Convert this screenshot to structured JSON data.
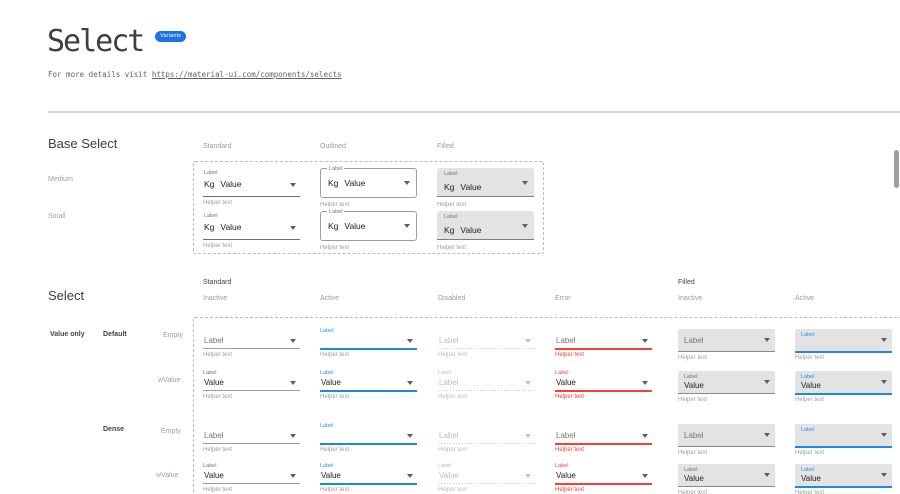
{
  "page": {
    "title": "Select",
    "badge": "Variants",
    "subtitle_prefix": "For more details visit ",
    "subtitle_link": "https://material-ui.com/components/selects"
  },
  "colors": {
    "accent_blue": "#2196f3",
    "active_underline": "#1e88e5",
    "error_red": "#f44336",
    "filled_background": "#e3e3e3",
    "dashed_border": "#b4badf",
    "badge_blue": "#1a73e8",
    "text_primary": "#212121",
    "text_secondary": "#757575",
    "text_hint": "#9e9e9e",
    "disabled_gray": "#bdbdbd"
  },
  "base_select": {
    "title": "Base Select",
    "columns": [
      "Standard",
      "Outlined",
      "Filled"
    ],
    "rows": [
      "Medium",
      "Small"
    ],
    "cells": [
      {
        "variant": "standard",
        "label": "Label",
        "adornment": "Kg",
        "value": "Value",
        "helper": "Helper text"
      },
      {
        "variant": "outlined",
        "label": "Label",
        "adornment": "Kg",
        "value": "Value",
        "helper": "Helper text"
      },
      {
        "variant": "filled",
        "label": "Label",
        "adornment": "Kg",
        "value": "Value",
        "helper": "Helper text"
      },
      {
        "variant": "standard",
        "label": "Label",
        "adornment": "Kg",
        "value": "Value",
        "helper": "Helper text"
      },
      {
        "variant": "outlined",
        "label": "Label",
        "adornment": "Kg",
        "value": "Value",
        "helper": "Helper text"
      },
      {
        "variant": "filled",
        "label": "Label",
        "adornment": "Kg",
        "value": "Value",
        "helper": "Helper text"
      }
    ]
  },
  "select_section": {
    "title": "Select",
    "group_standard": "Standard",
    "group_filled": "Filled",
    "columns": [
      "Inactive",
      "Active",
      "Disabled",
      "Error",
      "Inactive",
      "Active"
    ],
    "row_group_1": "Value only",
    "row_group_2": "Default",
    "row_group_3": "Dense",
    "row_labels": [
      "Empty",
      "wValue",
      "Empty",
      "wValue"
    ],
    "cells": [
      {
        "kind": "standard",
        "state": "inactive",
        "label": null,
        "value": "Label",
        "helper": "Helper text"
      },
      {
        "kind": "standard",
        "state": "active",
        "label": "Label",
        "value": "",
        "helper": "Helper text"
      },
      {
        "kind": "standard",
        "state": "disabled",
        "label": null,
        "value": "Label",
        "helper": "Helper text"
      },
      {
        "kind": "standard",
        "state": "error",
        "label": null,
        "value": "Label",
        "helper": "Helper text"
      },
      {
        "kind": "filled",
        "state": "inactive",
        "label": null,
        "value": "Label",
        "helper": "Helper text"
      },
      {
        "kind": "filled",
        "state": "active",
        "label": "Label",
        "value": "",
        "helper": "Helper text"
      },
      {
        "kind": "standard",
        "state": "inactive",
        "label": "Label",
        "value": "Value",
        "helper": "Helper text"
      },
      {
        "kind": "standard",
        "state": "active",
        "label": "Label",
        "value": "Value",
        "helper": "Helper text"
      },
      {
        "kind": "standard",
        "state": "disabled",
        "label": "Label",
        "value": "Label",
        "helper": "Helper text"
      },
      {
        "kind": "standard",
        "state": "error",
        "label": "Label",
        "value": "Value",
        "helper": "Helper text"
      },
      {
        "kind": "filled",
        "state": "inactive",
        "label": "Label",
        "value": "Value",
        "helper": "Helper text"
      },
      {
        "kind": "filled",
        "state": "active",
        "label": "Label",
        "value": "Value",
        "helper": "Helper text"
      },
      {
        "kind": "standard",
        "state": "inactive",
        "label": null,
        "value": "Label",
        "helper": "Helper text"
      },
      {
        "kind": "standard",
        "state": "active",
        "label": "Label",
        "value": "",
        "helper": "Helper text"
      },
      {
        "kind": "standard",
        "state": "disabled",
        "label": null,
        "value": "Label",
        "helper": "Helper text"
      },
      {
        "kind": "standard",
        "state": "error",
        "label": null,
        "value": "Label",
        "helper": "Helper text"
      },
      {
        "kind": "filled",
        "state": "inactive",
        "label": null,
        "value": "Label",
        "helper": "Helper text"
      },
      {
        "kind": "filled",
        "state": "active",
        "label": "Label",
        "value": "",
        "helper": "Helper text"
      },
      {
        "kind": "standard",
        "state": "inactive",
        "label": "Label",
        "value": "Value",
        "helper": "Helper text"
      },
      {
        "kind": "standard",
        "state": "active",
        "label": "Label",
        "value": "Value",
        "helper": "Helper text"
      },
      {
        "kind": "standard",
        "state": "disabled",
        "label": "Label",
        "value": "Value",
        "helper": "Helper text"
      },
      {
        "kind": "standard",
        "state": "error",
        "label": "Label",
        "value": "Value",
        "helper": "Helper text"
      },
      {
        "kind": "filled",
        "state": "inactive",
        "label": "Label",
        "value": "Value",
        "helper": "Helper text"
      },
      {
        "kind": "filled",
        "state": "active",
        "label": "Label",
        "value": "Value",
        "helper": "Helper text"
      }
    ]
  }
}
